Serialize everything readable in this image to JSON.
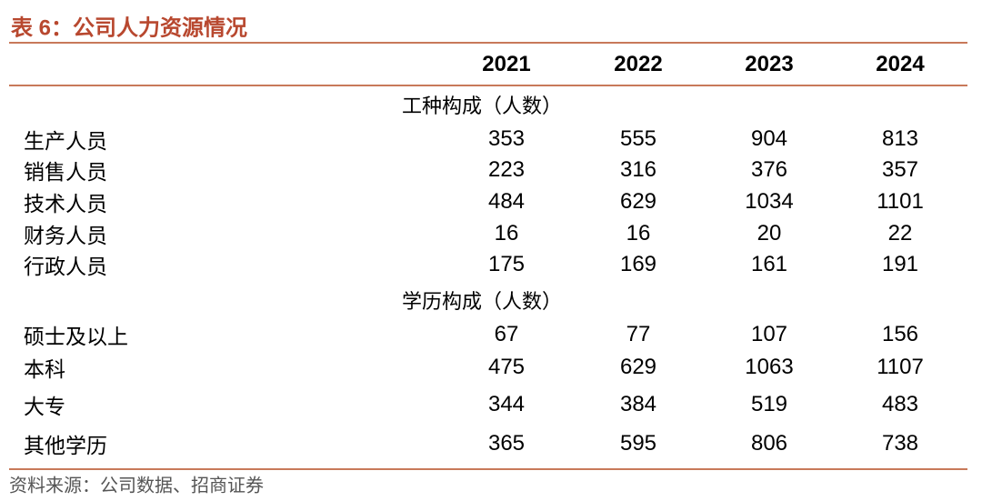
{
  "title": "表 6：公司人力资源情况",
  "table": {
    "columns": [
      "2021",
      "2022",
      "2023",
      "2024"
    ],
    "sections": [
      {
        "label": "工种构成（人数）",
        "rows": [
          {
            "name": "生产人员",
            "values": [
              353,
              555,
              904,
              813
            ]
          },
          {
            "name": "销售人员",
            "values": [
              223,
              316,
              376,
              357
            ]
          },
          {
            "name": "技术人员",
            "values": [
              484,
              629,
              1034,
              1101
            ]
          },
          {
            "name": "财务人员",
            "values": [
              16,
              16,
              20,
              22
            ]
          },
          {
            "name": "行政人员",
            "values": [
              175,
              169,
              161,
              191
            ]
          }
        ]
      },
      {
        "label": "学历构成（人数）",
        "rows": [
          {
            "name": "硕士及以上",
            "values": [
              67,
              77,
              107,
              156
            ]
          },
          {
            "name": "本科",
            "values": [
              475,
              629,
              1063,
              1107
            ]
          },
          {
            "name": "大专",
            "values": [
              344,
              384,
              519,
              483
            ]
          },
          {
            "name": "其他学历",
            "values": [
              365,
              595,
              806,
              738
            ]
          }
        ]
      }
    ]
  },
  "source": "资料来源：公司数据、招商证券"
}
